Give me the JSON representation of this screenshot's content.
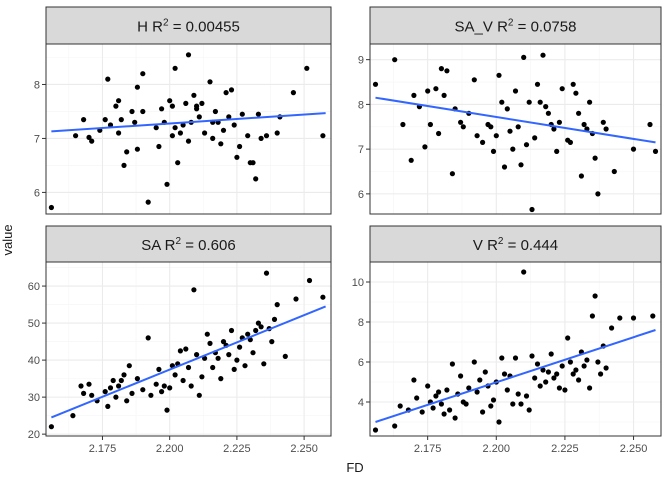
{
  "chart_data": {
    "type": "scatter",
    "xlabel": "FD",
    "ylabel": "value",
    "x_ticks": [
      2.175,
      2.2,
      2.225,
      2.25
    ],
    "x_tick_labels": [
      "2.175",
      "2.200",
      "2.225",
      "2.250"
    ],
    "xlim": [
      2.154,
      2.26
    ],
    "colors": {
      "points": "#000000",
      "trend": "#3366ff",
      "strip_bg": "#d9d9d9",
      "panel_border": "#333333",
      "grid_major": "#ebebeb",
      "grid_minor": "#f5f5f5"
    },
    "facets": [
      {
        "name": "H",
        "r2": "0.00455",
        "ylim": [
          5.6,
          8.75
        ],
        "y_ticks": [
          6,
          7,
          8
        ],
        "y_tick_labels": [
          "6",
          "7",
          "8"
        ],
        "trend": {
          "x": [
            2.156,
            2.258
          ],
          "y": [
            7.13,
            7.47
          ]
        },
        "points": [
          [
            2.156,
            5.72
          ],
          [
            2.165,
            7.05
          ],
          [
            2.168,
            7.35
          ],
          [
            2.17,
            7.02
          ],
          [
            2.171,
            6.95
          ],
          [
            2.174,
            7.15
          ],
          [
            2.176,
            7.35
          ],
          [
            2.177,
            8.1
          ],
          [
            2.178,
            7.25
          ],
          [
            2.18,
            7.6
          ],
          [
            2.181,
            7.7
          ],
          [
            2.181,
            7.1
          ],
          [
            2.182,
            7.35
          ],
          [
            2.183,
            6.5
          ],
          [
            2.184,
            6.75
          ],
          [
            2.186,
            7.5
          ],
          [
            2.187,
            7.3
          ],
          [
            2.188,
            7.95
          ],
          [
            2.188,
            6.8
          ],
          [
            2.19,
            8.2
          ],
          [
            2.19,
            7.5
          ],
          [
            2.192,
            5.82
          ],
          [
            2.195,
            7.2
          ],
          [
            2.196,
            6.85
          ],
          [
            2.197,
            7.55
          ],
          [
            2.198,
            7.3
          ],
          [
            2.199,
            6.15
          ],
          [
            2.2,
            7.7
          ],
          [
            2.201,
            7.6
          ],
          [
            2.201,
            7.05
          ],
          [
            2.202,
            8.3
          ],
          [
            2.202,
            7.2
          ],
          [
            2.203,
            6.55
          ],
          [
            2.204,
            7.1
          ],
          [
            2.205,
            7.25
          ],
          [
            2.206,
            7.65
          ],
          [
            2.207,
            8.55
          ],
          [
            2.207,
            6.95
          ],
          [
            2.208,
            7.3
          ],
          [
            2.209,
            7.8
          ],
          [
            2.21,
            7.55
          ],
          [
            2.21,
            7.6
          ],
          [
            2.211,
            7.4
          ],
          [
            2.212,
            7.65
          ],
          [
            2.213,
            7.1
          ],
          [
            2.215,
            8.05
          ],
          [
            2.216,
            7.3
          ],
          [
            2.216,
            7.0
          ],
          [
            2.217,
            7.5
          ],
          [
            2.218,
            7.3
          ],
          [
            2.219,
            6.9
          ],
          [
            2.22,
            7.15
          ],
          [
            2.221,
            7.85
          ],
          [
            2.222,
            7.4
          ],
          [
            2.223,
            7.9
          ],
          [
            2.224,
            7.25
          ],
          [
            2.225,
            6.65
          ],
          [
            2.226,
            6.85
          ],
          [
            2.227,
            7.45
          ],
          [
            2.229,
            7.05
          ],
          [
            2.23,
            6.55
          ],
          [
            2.231,
            6.55
          ],
          [
            2.232,
            6.25
          ],
          [
            2.233,
            7.45
          ],
          [
            2.234,
            7.0
          ],
          [
            2.236,
            7.05
          ],
          [
            2.24,
            7.1
          ],
          [
            2.241,
            7.4
          ],
          [
            2.246,
            7.85
          ],
          [
            2.251,
            8.3
          ],
          [
            2.257,
            7.05
          ]
        ]
      },
      {
        "name": "SA_V",
        "r2": "0.0758",
        "ylim": [
          5.55,
          9.35
        ],
        "y_ticks": [
          6,
          7,
          8,
          9
        ],
        "y_tick_labels": [
          "6",
          "7",
          "8",
          "9"
        ],
        "trend": {
          "x": [
            2.156,
            2.258
          ],
          "y": [
            8.15,
            7.15
          ]
        },
        "points": [
          [
            2.156,
            8.45
          ],
          [
            2.163,
            9.0
          ],
          [
            2.166,
            7.55
          ],
          [
            2.169,
            6.75
          ],
          [
            2.17,
            8.2
          ],
          [
            2.172,
            7.95
          ],
          [
            2.174,
            7.05
          ],
          [
            2.175,
            8.3
          ],
          [
            2.176,
            7.55
          ],
          [
            2.178,
            8.35
          ],
          [
            2.179,
            7.35
          ],
          [
            2.18,
            8.8
          ],
          [
            2.181,
            8.2
          ],
          [
            2.182,
            8.75
          ],
          [
            2.184,
            6.45
          ],
          [
            2.185,
            7.9
          ],
          [
            2.187,
            7.6
          ],
          [
            2.188,
            7.5
          ],
          [
            2.19,
            7.8
          ],
          [
            2.192,
            8.55
          ],
          [
            2.193,
            7.3
          ],
          [
            2.195,
            7.15
          ],
          [
            2.197,
            7.55
          ],
          [
            2.198,
            7.5
          ],
          [
            2.199,
            6.95
          ],
          [
            2.2,
            7.3
          ],
          [
            2.201,
            8.65
          ],
          [
            2.202,
            8.05
          ],
          [
            2.203,
            6.6
          ],
          [
            2.204,
            7.9
          ],
          [
            2.205,
            7.4
          ],
          [
            2.206,
            7.0
          ],
          [
            2.207,
            8.3
          ],
          [
            2.208,
            7.5
          ],
          [
            2.209,
            6.65
          ],
          [
            2.21,
            9.05
          ],
          [
            2.211,
            7.1
          ],
          [
            2.212,
            8.05
          ],
          [
            2.213,
            5.65
          ],
          [
            2.214,
            7.25
          ],
          [
            2.215,
            8.45
          ],
          [
            2.216,
            8.05
          ],
          [
            2.217,
            9.1
          ],
          [
            2.218,
            7.95
          ],
          [
            2.219,
            7.8
          ],
          [
            2.22,
            7.55
          ],
          [
            2.221,
            7.45
          ],
          [
            2.222,
            6.95
          ],
          [
            2.223,
            7.6
          ],
          [
            2.224,
            8.35
          ],
          [
            2.226,
            7.2
          ],
          [
            2.227,
            7.15
          ],
          [
            2.228,
            8.45
          ],
          [
            2.229,
            8.25
          ],
          [
            2.23,
            7.8
          ],
          [
            2.231,
            6.4
          ],
          [
            2.232,
            7.55
          ],
          [
            2.233,
            7.45
          ],
          [
            2.234,
            8.05
          ],
          [
            2.235,
            7.35
          ],
          [
            2.236,
            6.8
          ],
          [
            2.237,
            6.0
          ],
          [
            2.239,
            7.6
          ],
          [
            2.24,
            7.45
          ],
          [
            2.243,
            6.5
          ],
          [
            2.25,
            7.0
          ],
          [
            2.256,
            7.55
          ],
          [
            2.258,
            6.95
          ]
        ]
      },
      {
        "name": "SA",
        "r2": "0.606",
        "ylim": [
          19.5,
          66.5
        ],
        "y_ticks": [
          20,
          30,
          40,
          50,
          60
        ],
        "y_tick_labels": [
          "20",
          "30",
          "40",
          "50",
          "60"
        ],
        "trend": {
          "x": [
            2.156,
            2.258
          ],
          "y": [
            24.5,
            54.5
          ]
        },
        "points": [
          [
            2.156,
            22.0
          ],
          [
            2.164,
            25.0
          ],
          [
            2.167,
            33.0
          ],
          [
            2.168,
            31.0
          ],
          [
            2.17,
            33.5
          ],
          [
            2.171,
            30.5
          ],
          [
            2.173,
            29.0
          ],
          [
            2.176,
            31.5
          ],
          [
            2.177,
            27.5
          ],
          [
            2.178,
            32.5
          ],
          [
            2.179,
            34.5
          ],
          [
            2.18,
            30.0
          ],
          [
            2.181,
            33.0
          ],
          [
            2.182,
            34.5
          ],
          [
            2.183,
            36.0
          ],
          [
            2.184,
            29.0
          ],
          [
            2.185,
            38.5
          ],
          [
            2.186,
            31.0
          ],
          [
            2.188,
            35.0
          ],
          [
            2.19,
            32.0
          ],
          [
            2.192,
            46.0
          ],
          [
            2.193,
            30.5
          ],
          [
            2.195,
            33.5
          ],
          [
            2.196,
            37.5
          ],
          [
            2.197,
            31.5
          ],
          [
            2.198,
            33.0
          ],
          [
            2.199,
            26.5
          ],
          [
            2.2,
            32.5
          ],
          [
            2.201,
            38.5
          ],
          [
            2.202,
            36.0
          ],
          [
            2.203,
            39.0
          ],
          [
            2.204,
            42.5
          ],
          [
            2.205,
            34.5
          ],
          [
            2.206,
            43.0
          ],
          [
            2.207,
            38.0
          ],
          [
            2.208,
            33.0
          ],
          [
            2.209,
            59.0
          ],
          [
            2.21,
            41.5
          ],
          [
            2.211,
            30.5
          ],
          [
            2.212,
            35.5
          ],
          [
            2.213,
            40.5
          ],
          [
            2.214,
            47.0
          ],
          [
            2.215,
            44.5
          ],
          [
            2.216,
            38.0
          ],
          [
            2.217,
            42.0
          ],
          [
            2.218,
            40.5
          ],
          [
            2.219,
            35.0
          ],
          [
            2.22,
            45.0
          ],
          [
            2.221,
            44.0
          ],
          [
            2.222,
            41.5
          ],
          [
            2.223,
            48.0
          ],
          [
            2.224,
            37.5
          ],
          [
            2.225,
            40.0
          ],
          [
            2.226,
            43.5
          ],
          [
            2.227,
            46.0
          ],
          [
            2.228,
            38.5
          ],
          [
            2.229,
            47.0
          ],
          [
            2.23,
            45.5
          ],
          [
            2.231,
            42.0
          ],
          [
            2.232,
            48.0
          ],
          [
            2.233,
            50.0
          ],
          [
            2.234,
            49.0
          ],
          [
            2.235,
            39.0
          ],
          [
            2.236,
            63.5
          ],
          [
            2.237,
            48.5
          ],
          [
            2.238,
            45.0
          ],
          [
            2.239,
            51.0
          ],
          [
            2.24,
            55.0
          ],
          [
            2.243,
            41.0
          ],
          [
            2.247,
            56.5
          ],
          [
            2.252,
            61.5
          ],
          [
            2.257,
            57.0
          ]
        ]
      },
      {
        "name": "V",
        "r2": "0.444",
        "ylim": [
          2.3,
          11.0
        ],
        "y_ticks": [
          4,
          6,
          8,
          10
        ],
        "y_tick_labels": [
          "4",
          "6",
          "8",
          "10"
        ],
        "trend": {
          "x": [
            2.156,
            2.258
          ],
          "y": [
            3.0,
            7.6
          ]
        },
        "points": [
          [
            2.156,
            2.6
          ],
          [
            2.163,
            2.8
          ],
          [
            2.165,
            3.8
          ],
          [
            2.168,
            3.6
          ],
          [
            2.17,
            5.1
          ],
          [
            2.171,
            4.2
          ],
          [
            2.173,
            3.5
          ],
          [
            2.175,
            4.8
          ],
          [
            2.176,
            4.0
          ],
          [
            2.177,
            3.7
          ],
          [
            2.178,
            4.3
          ],
          [
            2.179,
            4.5
          ],
          [
            2.18,
            3.9
          ],
          [
            2.181,
            3.4
          ],
          [
            2.182,
            4.6
          ],
          [
            2.183,
            3.6
          ],
          [
            2.184,
            5.9
          ],
          [
            2.185,
            3.2
          ],
          [
            2.186,
            4.4
          ],
          [
            2.187,
            5.3
          ],
          [
            2.188,
            4.0
          ],
          [
            2.189,
            3.9
          ],
          [
            2.19,
            4.7
          ],
          [
            2.192,
            6.0
          ],
          [
            2.193,
            4.5
          ],
          [
            2.194,
            5.1
          ],
          [
            2.195,
            3.5
          ],
          [
            2.196,
            5.5
          ],
          [
            2.197,
            4.8
          ],
          [
            2.198,
            3.8
          ],
          [
            2.199,
            4.1
          ],
          [
            2.2,
            5.0
          ],
          [
            2.201,
            3.0
          ],
          [
            2.202,
            6.2
          ],
          [
            2.203,
            5.4
          ],
          [
            2.204,
            4.6
          ],
          [
            2.205,
            5.3
          ],
          [
            2.206,
            3.9
          ],
          [
            2.207,
            6.2
          ],
          [
            2.208,
            4.4
          ],
          [
            2.209,
            3.9
          ],
          [
            2.21,
            10.5
          ],
          [
            2.211,
            4.3
          ],
          [
            2.212,
            3.6
          ],
          [
            2.213,
            6.3
          ],
          [
            2.214,
            5.2
          ],
          [
            2.215,
            5.9
          ],
          [
            2.216,
            4.8
          ],
          [
            2.217,
            5.6
          ],
          [
            2.218,
            5.0
          ],
          [
            2.219,
            5.5
          ],
          [
            2.22,
            6.4
          ],
          [
            2.221,
            5.2
          ],
          [
            2.222,
            5.4
          ],
          [
            2.223,
            4.7
          ],
          [
            2.224,
            5.8
          ],
          [
            2.225,
            4.6
          ],
          [
            2.226,
            7.2
          ],
          [
            2.227,
            6.0
          ],
          [
            2.228,
            5.4
          ],
          [
            2.229,
            5.6
          ],
          [
            2.23,
            5.1
          ],
          [
            2.231,
            6.5
          ],
          [
            2.232,
            5.8
          ],
          [
            2.233,
            6.1
          ],
          [
            2.234,
            4.7
          ],
          [
            2.235,
            8.3
          ],
          [
            2.236,
            9.3
          ],
          [
            2.237,
            6.0
          ],
          [
            2.238,
            5.4
          ],
          [
            2.239,
            6.8
          ],
          [
            2.24,
            5.7
          ],
          [
            2.242,
            7.7
          ],
          [
            2.245,
            8.2
          ],
          [
            2.25,
            8.2
          ],
          [
            2.257,
            8.3
          ]
        ]
      }
    ]
  }
}
